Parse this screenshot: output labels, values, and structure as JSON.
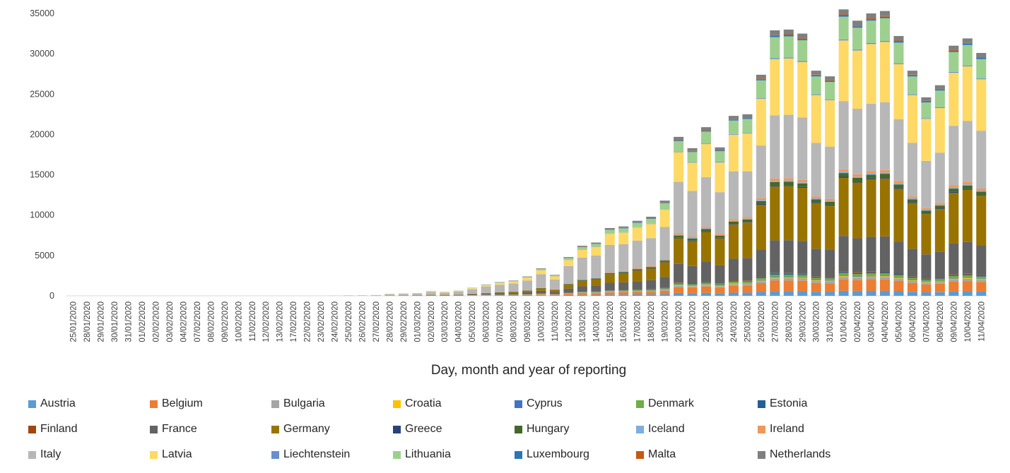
{
  "chart_data": {
    "type": "bar",
    "stacked": true,
    "title": "",
    "xlabel": "Day, month and year of reporting",
    "ylabel": "",
    "ylim": [
      0,
      35000
    ],
    "yticks": [
      0,
      5000,
      10000,
      15000,
      20000,
      25000,
      30000,
      35000
    ],
    "grid": false,
    "legend_position": "bottom",
    "categories": [
      "25/01/2020",
      "28/01/2020",
      "29/01/2020",
      "30/01/2020",
      "31/01/2020",
      "01/02/2020",
      "02/02/2020",
      "03/02/2020",
      "04/02/2020",
      "07/02/2020",
      "08/02/2020",
      "09/02/2020",
      "10/02/2020",
      "11/02/2020",
      "12/02/2020",
      "13/02/2020",
      "17/02/2020",
      "22/02/2020",
      "23/02/2020",
      "24/02/2020",
      "25/02/2020",
      "26/02/2020",
      "27/02/2020",
      "28/02/2020",
      "29/02/2020",
      "01/03/2020",
      "02/03/2020",
      "03/03/2020",
      "04/03/2020",
      "05/03/2020",
      "06/03/2020",
      "07/03/2020",
      "08/03/2020",
      "09/03/2020",
      "10/03/2020",
      "11/03/2020",
      "12/03/2020",
      "13/03/2020",
      "14/03/2020",
      "15/03/2020",
      "16/03/2020",
      "17/03/2020",
      "18/03/2020",
      "19/03/2020",
      "20/03/2020",
      "21/03/2020",
      "22/03/2020",
      "23/03/2020",
      "24/03/2020",
      "25/03/2020",
      "26/03/2020",
      "27/03/2020",
      "28/03/2020",
      "29/03/2020",
      "30/03/2020",
      "31/03/2020",
      "01/04/2020",
      "02/04/2020",
      "03/04/2020",
      "04/04/2020",
      "05/04/2020",
      "06/04/2020",
      "07/04/2020",
      "08/04/2020",
      "09/04/2020",
      "10/04/2020",
      "11/04/2020"
    ],
    "totals": [
      3,
      4,
      2,
      2,
      5,
      2,
      1,
      1,
      1,
      2,
      2,
      1,
      1,
      2,
      1,
      1,
      1,
      5,
      8,
      40,
      70,
      80,
      100,
      250,
      300,
      350,
      600,
      500,
      650,
      1000,
      1400,
      1700,
      1900,
      2400,
      3400,
      2600,
      4800,
      6200,
      6600,
      8400,
      8600,
      9300,
      9800,
      11800,
      19700,
      18300,
      20900,
      18400,
      22300,
      22500,
      27400,
      32900,
      33000,
      32500,
      27900,
      27200,
      35500,
      34100,
      35000,
      35300,
      32200,
      27900,
      24600,
      26100,
      31000,
      31900,
      30100
    ],
    "series": [
      {
        "name": "Austria",
        "color": "#5b9bd5"
      },
      {
        "name": "Belgium",
        "color": "#ed7d31"
      },
      {
        "name": "Bulgaria",
        "color": "#a5a5a5"
      },
      {
        "name": "Croatia",
        "color": "#ffc000"
      },
      {
        "name": "Cyprus",
        "color": "#4472c4"
      },
      {
        "name": "Denmark",
        "color": "#70ad47"
      },
      {
        "name": "Estonia",
        "color": "#255e91"
      },
      {
        "name": "Finland",
        "color": "#9e480e"
      },
      {
        "name": "France",
        "color": "#636363"
      },
      {
        "name": "Germany",
        "color": "#997300"
      },
      {
        "name": "Greece",
        "color": "#264478"
      },
      {
        "name": "Hungary",
        "color": "#43682b"
      },
      {
        "name": "Iceland",
        "color": "#7cafdd"
      },
      {
        "name": "Ireland",
        "color": "#f1975a"
      },
      {
        "name": "Italy",
        "color": "#b7b7b7"
      },
      {
        "name": "Latvia",
        "color": "#ffd966"
      },
      {
        "name": "Liechtenstein",
        "color": "#698ed0"
      },
      {
        "name": "Lithuania",
        "color": "#9dd08f"
      },
      {
        "name": "Luxembourg",
        "color": "#2e75b6"
      },
      {
        "name": "Malta",
        "color": "#c55a11"
      },
      {
        "name": "Netherlands",
        "color": "#7f7f7f"
      }
    ]
  }
}
